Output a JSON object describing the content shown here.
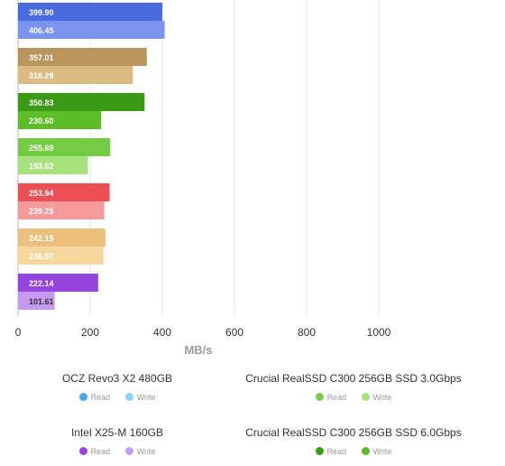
{
  "chart_data": {
    "type": "bar",
    "orientation": "horizontal",
    "xlabel": "MB/s",
    "xlim": [
      0,
      1000
    ],
    "xticks": [
      0,
      200,
      400,
      600,
      800,
      1000
    ],
    "grid": true,
    "rows": [
      {
        "read": 399.9,
        "write": 406.45,
        "read_color": "#4a6be0",
        "write_color": "#7b93f0",
        "read_text": "#ffffff",
        "write_text": "#ffffff"
      },
      {
        "read": 357.01,
        "write": 318.28,
        "read_color": "#b8955a",
        "write_color": "#dcbb82",
        "read_text": "#ffffff",
        "write_text": "#ffffff"
      },
      {
        "read": 350.83,
        "write": 230.6,
        "read_color": "#3a9a14",
        "write_color": "#5dbd28",
        "read_text": "#ffffff",
        "write_text": "#ffffff"
      },
      {
        "read": 255.69,
        "write": 193.62,
        "read_color": "#74cc44",
        "write_color": "#a8e27c",
        "read_text": "#ffffff",
        "write_text": "#ffffff"
      },
      {
        "read": 253.94,
        "write": 239.25,
        "read_color": "#ec4f55",
        "write_color": "#f79a9c",
        "read_text": "#ffffff",
        "write_text": "#ffffff"
      },
      {
        "read": 242.15,
        "write": 236.97,
        "read_color": "#ebbf7d",
        "write_color": "#f7d79e",
        "read_text": "#ffffff",
        "write_text": "#ffffff"
      },
      {
        "read": 222.14,
        "write": 101.61,
        "read_color": "#9743e0",
        "write_color": "#c69af0",
        "read_text": "#ffffff",
        "write_text": "#333333"
      }
    ],
    "legend": [
      {
        "title": "OCZ Revo3 X2 480GB",
        "read_label": "Read",
        "write_label": "Write",
        "read_color": "#4aa6e8",
        "write_color": "#8fd2f2"
      },
      {
        "title": "Crucial RealSSD C300 256GB SSD 3.0Gbps",
        "read_label": "Read",
        "write_label": "Write",
        "read_color": "#7ccb4e",
        "write_color": "#a8e27c"
      },
      {
        "title": "Intel X25-M 160GB",
        "read_label": "Read",
        "write_label": "Write",
        "read_color": "#9743e0",
        "write_color": "#c69af0"
      },
      {
        "title": "Crucial RealSSD C300 256GB SSD 6.0Gbps",
        "read_label": "Read",
        "write_label": "Write",
        "read_color": "#3a9a14",
        "write_color": "#5dbd28"
      }
    ]
  }
}
